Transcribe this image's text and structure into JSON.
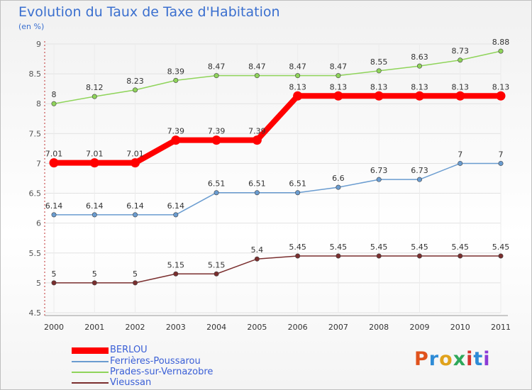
{
  "title": "Evolution du Taux de Taxe d'Habitation",
  "subtitle": "(en %)",
  "logo": {
    "text": "Proxiti",
    "letter_colors": [
      "#e0521c",
      "#2e8bd6",
      "#e0a21c",
      "#2ea85a",
      "#d6342e",
      "#2e8bd6",
      "#8b3bd6"
    ]
  },
  "chart_data": {
    "type": "line",
    "x": [
      "2000",
      "2001",
      "2002",
      "2003",
      "2004",
      "2005",
      "2006",
      "2007",
      "2008",
      "2009",
      "2010",
      "2011"
    ],
    "ylim": [
      4.5,
      9
    ],
    "yticks": [
      "4.5",
      "5",
      "5.5",
      "6",
      "6.5",
      "7",
      "7.5",
      "8",
      "8.5",
      "9"
    ],
    "grid": true,
    "legend_position": "bottom-left",
    "series": [
      {
        "name": "BERLOU",
        "color": "#ff0000",
        "values": [
          7.01,
          7.01,
          7.01,
          7.39,
          7.39,
          7.39,
          8.13,
          8.13,
          8.13,
          8.13,
          8.13,
          8.13
        ],
        "labels": [
          "7.01",
          "7.01",
          "7.01",
          "7.39",
          "7.39",
          "7.39",
          "8.13",
          "8.13",
          "8.13",
          "8.13",
          "8.13",
          "8.13"
        ]
      },
      {
        "name": "Ferrières-Poussarou",
        "color": "#6a9cd0",
        "values": [
          6.14,
          6.14,
          6.14,
          6.14,
          6.51,
          6.51,
          6.51,
          6.6,
          6.73,
          6.73,
          7,
          7
        ],
        "labels": [
          "6.14",
          "6.14",
          "6.14",
          "6.14",
          "6.51",
          "6.51",
          "6.51",
          "6.6",
          "6.73",
          "6.73",
          "7",
          "7"
        ]
      },
      {
        "name": "Prades-sur-Vernazobre",
        "color": "#8fd45a",
        "values": [
          8,
          8.12,
          8.23,
          8.39,
          8.47,
          8.47,
          8.47,
          8.47,
          8.55,
          8.63,
          8.73,
          8.88
        ],
        "labels": [
          "8",
          "8.12",
          "8.23",
          "8.39",
          "8.47",
          "8.47",
          "8.47",
          "8.47",
          "8.55",
          "8.63",
          "8.73",
          "8.88"
        ]
      },
      {
        "name": "Vieussan",
        "color": "#7a2e2e",
        "values": [
          5,
          5,
          5,
          5.15,
          5.15,
          5.4,
          5.45,
          5.45,
          5.45,
          5.45,
          5.45,
          5.45
        ],
        "labels": [
          "5",
          "5",
          "5",
          "5.15",
          "5.15",
          "5.4",
          "5.45",
          "5.45",
          "5.45",
          "5.45",
          "5.45",
          "5.45"
        ]
      }
    ]
  }
}
